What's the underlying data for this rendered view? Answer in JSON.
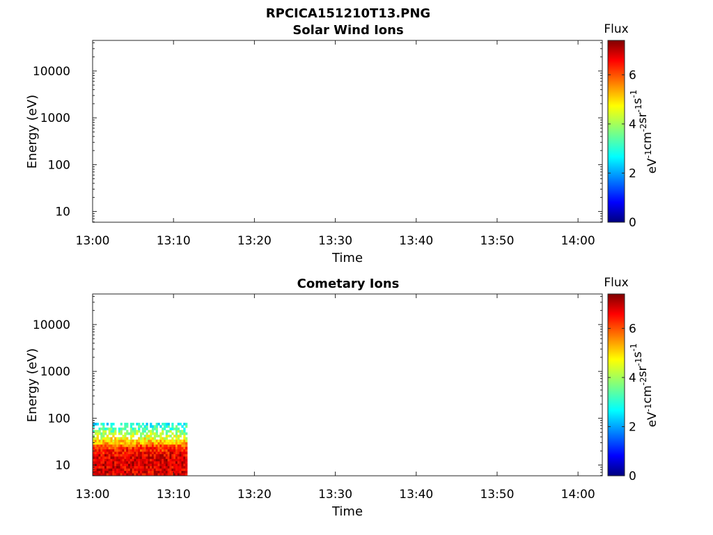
{
  "figure_title": "RPCICA151210T13.PNG",
  "chart_data": [
    {
      "type": "heatmap",
      "title": "Solar Wind Ions",
      "xlabel": "Time",
      "ylabel": "Energy (eV)",
      "y_scale": "log",
      "x_ticks": [
        "13:00",
        "13:10",
        "13:20",
        "13:30",
        "13:40",
        "13:50",
        "14:00"
      ],
      "y_ticks": [
        "10",
        "100",
        "1000",
        "10000"
      ],
      "colorbar": {
        "label": "Flux",
        "unit_base": [
          "eV",
          "cm",
          "sr",
          "s"
        ],
        "unit_exp": [
          "-1",
          "-2",
          "-1",
          "-1"
        ],
        "ticks": [
          "0",
          "2",
          "4",
          "6"
        ],
        "range": [
          0,
          7.4
        ],
        "colormap": "jet"
      },
      "data": "empty — no flux shown"
    },
    {
      "type": "heatmap",
      "title": "Cometary Ions",
      "xlabel": "Time",
      "ylabel": "Energy (eV)",
      "y_scale": "log",
      "x_ticks": [
        "13:00",
        "13:10",
        "13:20",
        "13:30",
        "13:40",
        "13:50",
        "14:00"
      ],
      "y_ticks": [
        "10",
        "100",
        "1000",
        "10000"
      ],
      "colorbar": {
        "label": "Flux",
        "unit_base": [
          "eV",
          "cm",
          "sr",
          "s"
        ],
        "unit_exp": [
          "-1",
          "-2",
          "-1",
          "-1"
        ],
        "ticks": [
          "0",
          "2",
          "4",
          "6"
        ],
        "range": [
          0,
          7.4
        ],
        "colormap": "jet"
      },
      "data": {
        "time_range": [
          "13:00",
          "13:11.7"
        ],
        "energy_range_eV": [
          6,
          80
        ],
        "flux_profile": [
          {
            "energy_eV": 8,
            "flux": 6.7
          },
          {
            "energy_eV": 12,
            "flux": 6.8
          },
          {
            "energy_eV": 17,
            "flux": 6.6
          },
          {
            "energy_eV": 25,
            "flux": 6.0
          },
          {
            "energy_eV": 30,
            "flux": 5.2
          },
          {
            "energy_eV": 40,
            "flux": 4.4
          },
          {
            "energy_eV": 55,
            "flux": 3.6
          },
          {
            "energy_eV": 75,
            "flux": 2.8
          }
        ]
      }
    }
  ]
}
